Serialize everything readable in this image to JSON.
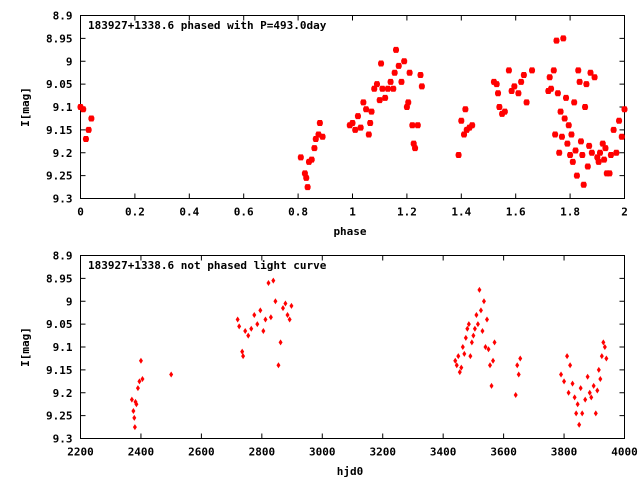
{
  "chart_data": [
    {
      "type": "scatter",
      "title": "183927+1338.6 phased with P=493.0day",
      "xlabel": "phase",
      "ylabel": "I[mag]",
      "xlim": [
        0,
        2
      ],
      "ylim": [
        8.9,
        9.3
      ],
      "y_inverted": true,
      "x_ticks": [
        "0",
        "0.2",
        "0.4",
        "0.6",
        "0.8",
        "1",
        "1.2",
        "1.4",
        "1.6",
        "1.8",
        "2"
      ],
      "y_ticks": [
        "8.9",
        "8.95",
        "9",
        "9.05",
        "9.1",
        "9.15",
        "9.2",
        "9.25",
        "9.3"
      ],
      "grid": false,
      "legend_position": "top-left",
      "marker": "star",
      "color": "#ff0000",
      "points": [
        [
          0.0,
          9.1
        ],
        [
          0.01,
          9.105
        ],
        [
          0.02,
          9.17
        ],
        [
          0.03,
          9.15
        ],
        [
          0.04,
          9.125
        ],
        [
          0.81,
          9.21
        ],
        [
          0.825,
          9.245
        ],
        [
          0.83,
          9.255
        ],
        [
          0.835,
          9.275
        ],
        [
          0.84,
          9.22
        ],
        [
          0.85,
          9.215
        ],
        [
          0.86,
          9.19
        ],
        [
          0.865,
          9.17
        ],
        [
          0.875,
          9.16
        ],
        [
          0.88,
          9.135
        ],
        [
          0.89,
          9.165
        ],
        [
          0.99,
          9.14
        ],
        [
          1.0,
          9.135
        ],
        [
          1.01,
          9.15
        ],
        [
          1.02,
          9.12
        ],
        [
          1.03,
          9.145
        ],
        [
          1.04,
          9.09
        ],
        [
          1.05,
          9.105
        ],
        [
          1.06,
          9.16
        ],
        [
          1.065,
          9.135
        ],
        [
          1.07,
          9.11
        ],
        [
          1.08,
          9.06
        ],
        [
          1.09,
          9.05
        ],
        [
          1.1,
          9.085
        ],
        [
          1.105,
          9.005
        ],
        [
          1.11,
          9.06
        ],
        [
          1.12,
          9.08
        ],
        [
          1.13,
          9.06
        ],
        [
          1.14,
          9.045
        ],
        [
          1.15,
          9.06
        ],
        [
          1.155,
          9.025
        ],
        [
          1.16,
          8.975
        ],
        [
          1.17,
          9.01
        ],
        [
          1.18,
          9.045
        ],
        [
          1.19,
          9.0
        ],
        [
          1.2,
          9.1
        ],
        [
          1.205,
          9.09
        ],
        [
          1.21,
          9.025
        ],
        [
          1.22,
          9.14
        ],
        [
          1.225,
          9.18
        ],
        [
          1.23,
          9.19
        ],
        [
          1.24,
          9.14
        ],
        [
          1.25,
          9.03
        ],
        [
          1.255,
          9.055
        ],
        [
          1.39,
          9.205
        ],
        [
          1.4,
          9.13
        ],
        [
          1.41,
          9.16
        ],
        [
          1.415,
          9.105
        ],
        [
          1.42,
          9.15
        ],
        [
          1.43,
          9.145
        ],
        [
          1.44,
          9.14
        ],
        [
          1.52,
          9.045
        ],
        [
          1.53,
          9.05
        ],
        [
          1.535,
          9.07
        ],
        [
          1.54,
          9.1
        ],
        [
          1.55,
          9.115
        ],
        [
          1.56,
          9.11
        ],
        [
          1.575,
          9.02
        ],
        [
          1.585,
          9.065
        ],
        [
          1.595,
          9.055
        ],
        [
          1.61,
          9.07
        ],
        [
          1.62,
          9.045
        ],
        [
          1.63,
          9.03
        ],
        [
          1.64,
          9.09
        ],
        [
          1.66,
          9.02
        ],
        [
          1.72,
          9.065
        ],
        [
          1.725,
          9.035
        ],
        [
          1.73,
          9.06
        ],
        [
          1.74,
          9.02
        ],
        [
          1.745,
          9.16
        ],
        [
          1.75,
          8.955
        ],
        [
          1.755,
          9.07
        ],
        [
          1.76,
          9.2
        ],
        [
          1.765,
          9.11
        ],
        [
          1.77,
          9.165
        ],
        [
          1.775,
          8.95
        ],
        [
          1.78,
          9.125
        ],
        [
          1.785,
          9.08
        ],
        [
          1.79,
          9.18
        ],
        [
          1.795,
          9.14
        ],
        [
          1.8,
          9.205
        ],
        [
          1.805,
          9.16
        ],
        [
          1.81,
          9.22
        ],
        [
          1.815,
          9.09
        ],
        [
          1.82,
          9.195
        ],
        [
          1.825,
          9.25
        ],
        [
          1.83,
          9.02
        ],
        [
          1.835,
          9.045
        ],
        [
          1.84,
          9.175
        ],
        [
          1.845,
          9.205
        ],
        [
          1.85,
          9.27
        ],
        [
          1.855,
          9.1
        ],
        [
          1.86,
          9.05
        ],
        [
          1.865,
          9.23
        ],
        [
          1.87,
          9.185
        ],
        [
          1.875,
          9.025
        ],
        [
          1.88,
          9.2
        ],
        [
          1.89,
          9.035
        ],
        [
          1.9,
          9.21
        ],
        [
          1.905,
          9.22
        ],
        [
          1.91,
          9.2
        ],
        [
          1.92,
          9.18
        ],
        [
          1.925,
          9.215
        ],
        [
          1.93,
          9.19
        ],
        [
          1.935,
          9.245
        ],
        [
          1.945,
          9.245
        ],
        [
          1.95,
          9.205
        ],
        [
          1.96,
          9.15
        ],
        [
          1.97,
          9.2
        ],
        [
          1.98,
          9.13
        ],
        [
          1.99,
          9.165
        ],
        [
          2.0,
          9.105
        ]
      ]
    },
    {
      "type": "scatter",
      "title": "183927+1338.6 not phased light curve",
      "xlabel": "hjd0",
      "ylabel": "I[mag]",
      "xlim": [
        2200,
        4000
      ],
      "ylim": [
        8.9,
        9.3
      ],
      "y_inverted": true,
      "x_ticks": [
        "2200",
        "2400",
        "2600",
        "2800",
        "3000",
        "3200",
        "3400",
        "3600",
        "3800",
        "4000"
      ],
      "y_ticks": [
        "8.9",
        "8.95",
        "9",
        "9.05",
        "9.1",
        "9.15",
        "9.2",
        "9.25",
        "9.3"
      ],
      "grid": false,
      "legend_position": "top-left",
      "marker": "diamond",
      "color": "#ff0000",
      "points": [
        [
          2370,
          9.215
        ],
        [
          2375,
          9.24
        ],
        [
          2378,
          9.255
        ],
        [
          2380,
          9.275
        ],
        [
          2382,
          9.22
        ],
        [
          2385,
          9.225
        ],
        [
          2390,
          9.19
        ],
        [
          2395,
          9.175
        ],
        [
          2400,
          9.13
        ],
        [
          2405,
          9.17
        ],
        [
          2500,
          9.16
        ],
        [
          2720,
          9.04
        ],
        [
          2725,
          9.055
        ],
        [
          2735,
          9.11
        ],
        [
          2738,
          9.12
        ],
        [
          2745,
          9.065
        ],
        [
          2755,
          9.075
        ],
        [
          2765,
          9.06
        ],
        [
          2775,
          9.03
        ],
        [
          2785,
          9.05
        ],
        [
          2795,
          9.02
        ],
        [
          2805,
          9.065
        ],
        [
          2812,
          9.04
        ],
        [
          2822,
          8.96
        ],
        [
          2830,
          9.035
        ],
        [
          2838,
          8.955
        ],
        [
          2845,
          9.0
        ],
        [
          2855,
          9.14
        ],
        [
          2862,
          9.09
        ],
        [
          2870,
          9.015
        ],
        [
          2878,
          9.005
        ],
        [
          2885,
          9.03
        ],
        [
          2892,
          9.04
        ],
        [
          2898,
          9.01
        ],
        [
          3440,
          9.13
        ],
        [
          3445,
          9.14
        ],
        [
          3450,
          9.12
        ],
        [
          3455,
          9.155
        ],
        [
          3460,
          9.145
        ],
        [
          3465,
          9.1
        ],
        [
          3470,
          9.115
        ],
        [
          3475,
          9.08
        ],
        [
          3480,
          9.06
        ],
        [
          3485,
          9.05
        ],
        [
          3490,
          9.12
        ],
        [
          3495,
          9.09
        ],
        [
          3500,
          9.075
        ],
        [
          3505,
          9.06
        ],
        [
          3510,
          9.03
        ],
        [
          3515,
          9.05
        ],
        [
          3520,
          8.975
        ],
        [
          3525,
          9.02
        ],
        [
          3530,
          9.065
        ],
        [
          3535,
          9.0
        ],
        [
          3540,
          9.1
        ],
        [
          3545,
          9.04
        ],
        [
          3550,
          9.105
        ],
        [
          3555,
          9.14
        ],
        [
          3560,
          9.185
        ],
        [
          3565,
          9.13
        ],
        [
          3570,
          9.09
        ],
        [
          3640,
          9.205
        ],
        [
          3645,
          9.14
        ],
        [
          3650,
          9.16
        ],
        [
          3655,
          9.125
        ],
        [
          3790,
          9.16
        ],
        [
          3800,
          9.175
        ],
        [
          3810,
          9.12
        ],
        [
          3815,
          9.2
        ],
        [
          3820,
          9.14
        ],
        [
          3828,
          9.18
        ],
        [
          3835,
          9.21
        ],
        [
          3840,
          9.245
        ],
        [
          3845,
          9.225
        ],
        [
          3850,
          9.27
        ],
        [
          3855,
          9.19
        ],
        [
          3860,
          9.245
        ],
        [
          3870,
          9.215
        ],
        [
          3878,
          9.165
        ],
        [
          3885,
          9.2
        ],
        [
          3890,
          9.21
        ],
        [
          3898,
          9.185
        ],
        [
          3905,
          9.245
        ],
        [
          3910,
          9.195
        ],
        [
          3915,
          9.15
        ],
        [
          3920,
          9.17
        ],
        [
          3925,
          9.12
        ],
        [
          3930,
          9.09
        ],
        [
          3935,
          9.1
        ],
        [
          3940,
          9.125
        ]
      ]
    }
  ]
}
